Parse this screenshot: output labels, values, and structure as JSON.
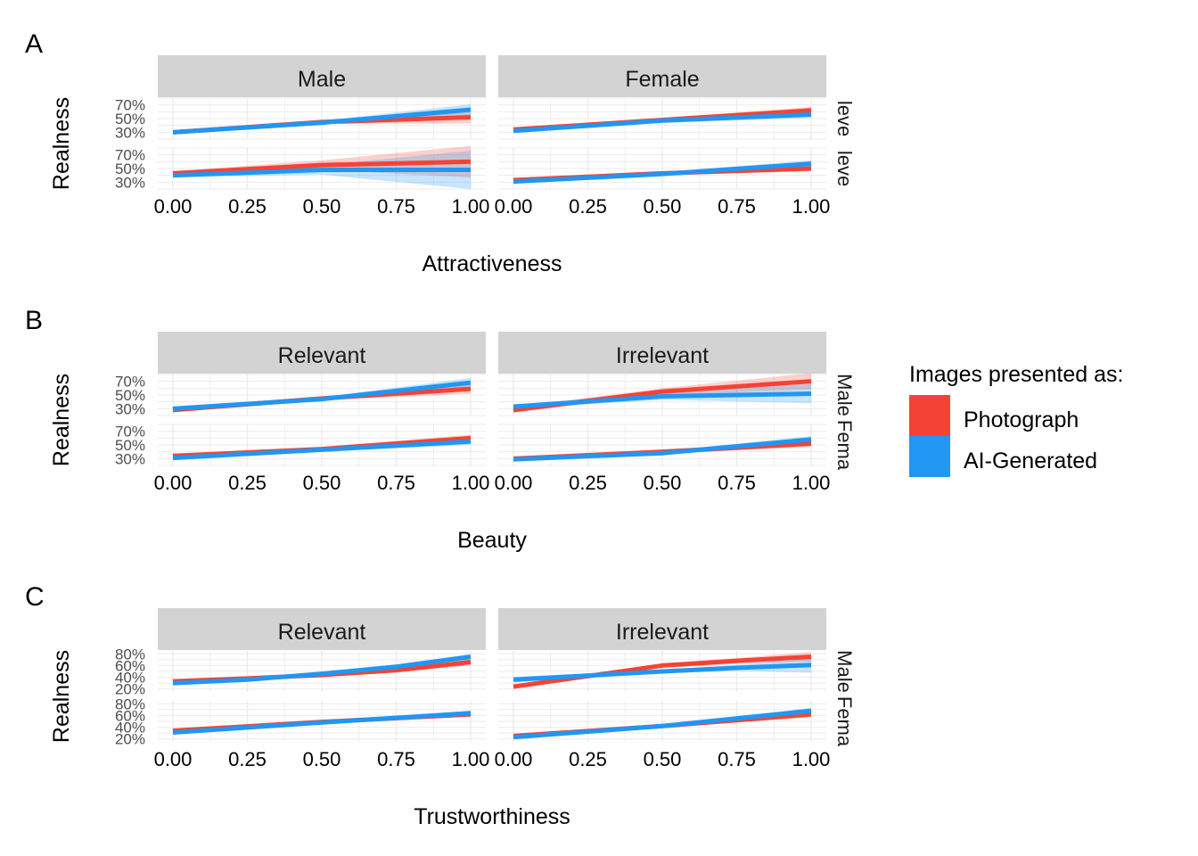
{
  "legend": {
    "title": "Images presented as:",
    "items": [
      {
        "label": "Photograph",
        "color": "#F44336"
      },
      {
        "label": "AI-Generated",
        "color": "#2196F3"
      }
    ]
  },
  "chart_data": [
    {
      "type": "line",
      "panel_label": "A",
      "xlabel": "Attractiveness",
      "ylabel": "Realness",
      "columns": [
        "Male",
        "Female"
      ],
      "row_strips": [
        "leve",
        "leve"
      ],
      "x_ticks": [
        "0.00",
        "0.25",
        "0.50",
        "0.75",
        "1.00"
      ],
      "y_ticks": [
        "30%",
        "50%",
        "70%"
      ],
      "xlim": [
        0,
        1
      ],
      "ylim": [
        0.2,
        0.8
      ],
      "panels": [
        {
          "column": 0,
          "row": 0,
          "series": [
            {
              "name": "Photograph",
              "x": [
                0,
                0.5,
                1
              ],
              "y": [
                0.3,
                0.45,
                0.52
              ],
              "lo": [
                0.27,
                0.42,
                0.43
              ],
              "hi": [
                0.33,
                0.48,
                0.61
              ]
            },
            {
              "name": "AI-Generated",
              "x": [
                0,
                0.5,
                1
              ],
              "y": [
                0.3,
                0.44,
                0.63
              ],
              "lo": [
                0.27,
                0.41,
                0.55
              ],
              "hi": [
                0.33,
                0.47,
                0.71
              ]
            }
          ]
        },
        {
          "column": 1,
          "row": 0,
          "series": [
            {
              "name": "Photograph",
              "x": [
                0,
                0.5,
                1
              ],
              "y": [
                0.34,
                0.48,
                0.62
              ],
              "lo": [
                0.31,
                0.45,
                0.57
              ],
              "hi": [
                0.37,
                0.51,
                0.67
              ]
            },
            {
              "name": "AI-Generated",
              "x": [
                0,
                0.5,
                1
              ],
              "y": [
                0.32,
                0.47,
                0.56
              ],
              "lo": [
                0.29,
                0.44,
                0.51
              ],
              "hi": [
                0.35,
                0.5,
                0.61
              ]
            }
          ]
        },
        {
          "column": 0,
          "row": 1,
          "series": [
            {
              "name": "Photograph",
              "x": [
                0,
                0.5,
                1
              ],
              "y": [
                0.43,
                0.55,
                0.6
              ],
              "lo": [
                0.4,
                0.48,
                0.37
              ],
              "hi": [
                0.46,
                0.62,
                0.83
              ]
            },
            {
              "name": "AI-Generated",
              "x": [
                0,
                0.5,
                1
              ],
              "y": [
                0.4,
                0.48,
                0.48
              ],
              "lo": [
                0.37,
                0.41,
                0.2
              ],
              "hi": [
                0.43,
                0.55,
                0.76
              ]
            }
          ]
        },
        {
          "column": 1,
          "row": 1,
          "series": [
            {
              "name": "Photograph",
              "x": [
                0,
                0.5,
                1
              ],
              "y": [
                0.33,
                0.43,
                0.5
              ],
              "lo": [
                0.3,
                0.4,
                0.46
              ],
              "hi": [
                0.36,
                0.46,
                0.54
              ]
            },
            {
              "name": "AI-Generated",
              "x": [
                0,
                0.5,
                1
              ],
              "y": [
                0.31,
                0.42,
                0.57
              ],
              "lo": [
                0.28,
                0.39,
                0.52
              ],
              "hi": [
                0.34,
                0.45,
                0.62
              ]
            }
          ]
        }
      ]
    },
    {
      "type": "line",
      "panel_label": "B",
      "xlabel": "Beauty",
      "ylabel": "Realness",
      "columns": [
        "Relevant",
        "Irrelevant"
      ],
      "row_strips": [
        "Male",
        "Fema"
      ],
      "x_ticks": [
        "0.00",
        "0.25",
        "0.50",
        "0.75",
        "1.00"
      ],
      "y_ticks": [
        "30%",
        "50%",
        "70%"
      ],
      "xlim": [
        0,
        1
      ],
      "ylim": [
        0.2,
        0.8
      ],
      "panels": [
        {
          "column": 0,
          "row": 0,
          "series": [
            {
              "name": "Photograph",
              "x": [
                0,
                0.5,
                1
              ],
              "y": [
                0.28,
                0.45,
                0.59
              ],
              "lo": [
                0.25,
                0.42,
                0.52
              ],
              "hi": [
                0.31,
                0.48,
                0.66
              ]
            },
            {
              "name": "AI-Generated",
              "x": [
                0,
                0.5,
                1
              ],
              "y": [
                0.3,
                0.44,
                0.68
              ],
              "lo": [
                0.27,
                0.41,
                0.61
              ],
              "hi": [
                0.33,
                0.47,
                0.75
              ]
            }
          ]
        },
        {
          "column": 1,
          "row": 0,
          "series": [
            {
              "name": "Photograph",
              "x": [
                0,
                0.5,
                1
              ],
              "y": [
                0.28,
                0.55,
                0.7
              ],
              "lo": [
                0.24,
                0.5,
                0.58
              ],
              "hi": [
                0.32,
                0.6,
                0.82
              ]
            },
            {
              "name": "AI-Generated",
              "x": [
                0,
                0.5,
                1
              ],
              "y": [
                0.33,
                0.48,
                0.52
              ],
              "lo": [
                0.3,
                0.43,
                0.38
              ],
              "hi": [
                0.36,
                0.53,
                0.66
              ]
            }
          ]
        },
        {
          "column": 0,
          "row": 1,
          "series": [
            {
              "name": "Photograph",
              "x": [
                0,
                0.5,
                1
              ],
              "y": [
                0.34,
                0.44,
                0.6
              ],
              "lo": [
                0.31,
                0.41,
                0.55
              ],
              "hi": [
                0.37,
                0.47,
                0.65
              ]
            },
            {
              "name": "AI-Generated",
              "x": [
                0,
                0.5,
                1
              ],
              "y": [
                0.31,
                0.43,
                0.55
              ],
              "lo": [
                0.28,
                0.4,
                0.5
              ],
              "hi": [
                0.34,
                0.46,
                0.6
              ]
            }
          ]
        },
        {
          "column": 1,
          "row": 1,
          "series": [
            {
              "name": "Photograph",
              "x": [
                0,
                0.5,
                1
              ],
              "y": [
                0.3,
                0.4,
                0.52
              ],
              "lo": [
                0.27,
                0.37,
                0.47
              ],
              "hi": [
                0.33,
                0.43,
                0.57
              ]
            },
            {
              "name": "AI-Generated",
              "x": [
                0,
                0.5,
                1
              ],
              "y": [
                0.29,
                0.38,
                0.58
              ],
              "lo": [
                0.26,
                0.35,
                0.53
              ],
              "hi": [
                0.32,
                0.41,
                0.63
              ]
            }
          ]
        }
      ]
    },
    {
      "type": "line",
      "panel_label": "C",
      "xlabel": "Trustworthiness",
      "ylabel": "Realness",
      "columns": [
        "Relevant",
        "Irrelevant"
      ],
      "row_strips": [
        "Male",
        "Fema"
      ],
      "x_ticks": [
        "0.00",
        "0.25",
        "0.50",
        "0.75",
        "1.00"
      ],
      "y_ticks": [
        "20%",
        "40%",
        "60%",
        "80%"
      ],
      "xlim": [
        0,
        1
      ],
      "ylim": [
        0.15,
        0.85
      ],
      "panels": [
        {
          "column": 0,
          "row": 0,
          "series": [
            {
              "name": "Photograph",
              "x": [
                0,
                0.25,
                0.5,
                0.75,
                1
              ],
              "y": [
                0.33,
                0.38,
                0.44,
                0.52,
                0.66
              ],
              "lo": [
                0.3,
                0.35,
                0.41,
                0.48,
                0.6
              ],
              "hi": [
                0.36,
                0.41,
                0.47,
                0.56,
                0.72
              ]
            },
            {
              "name": "AI-Generated",
              "x": [
                0,
                0.25,
                0.5,
                0.75,
                1
              ],
              "y": [
                0.3,
                0.36,
                0.46,
                0.58,
                0.75
              ],
              "lo": [
                0.27,
                0.33,
                0.43,
                0.54,
                0.7
              ],
              "hi": [
                0.33,
                0.39,
                0.49,
                0.62,
                0.8
              ]
            }
          ]
        },
        {
          "column": 1,
          "row": 0,
          "series": [
            {
              "name": "Photograph",
              "x": [
                0,
                0.25,
                0.5,
                0.75,
                1
              ],
              "y": [
                0.24,
                0.42,
                0.6,
                0.68,
                0.75
              ],
              "lo": [
                0.2,
                0.39,
                0.56,
                0.63,
                0.67
              ],
              "hi": [
                0.28,
                0.45,
                0.64,
                0.73,
                0.83
              ]
            },
            {
              "name": "AI-Generated",
              "x": [
                0,
                0.25,
                0.5,
                0.75,
                1
              ],
              "y": [
                0.36,
                0.43,
                0.5,
                0.56,
                0.61
              ],
              "lo": [
                0.31,
                0.4,
                0.47,
                0.51,
                0.48
              ],
              "hi": [
                0.41,
                0.46,
                0.53,
                0.61,
                0.74
              ]
            }
          ]
        },
        {
          "column": 0,
          "row": 1,
          "series": [
            {
              "name": "Photograph",
              "x": [
                0,
                0.5,
                1
              ],
              "y": [
                0.34,
                0.49,
                0.62
              ],
              "lo": [
                0.31,
                0.46,
                0.58
              ],
              "hi": [
                0.37,
                0.52,
                0.66
              ]
            },
            {
              "name": "AI-Generated",
              "x": [
                0,
                0.5,
                1
              ],
              "y": [
                0.31,
                0.48,
                0.64
              ],
              "lo": [
                0.28,
                0.45,
                0.6
              ],
              "hi": [
                0.34,
                0.51,
                0.68
              ]
            }
          ]
        },
        {
          "column": 1,
          "row": 1,
          "series": [
            {
              "name": "Photograph",
              "x": [
                0,
                0.5,
                1
              ],
              "y": [
                0.25,
                0.42,
                0.62
              ],
              "lo": [
                0.22,
                0.39,
                0.57
              ],
              "hi": [
                0.28,
                0.45,
                0.67
              ]
            },
            {
              "name": "AI-Generated",
              "x": [
                0,
                0.5,
                1
              ],
              "y": [
                0.23,
                0.42,
                0.68
              ],
              "lo": [
                0.2,
                0.39,
                0.63
              ],
              "hi": [
                0.26,
                0.45,
                0.73
              ]
            }
          ]
        }
      ]
    }
  ]
}
